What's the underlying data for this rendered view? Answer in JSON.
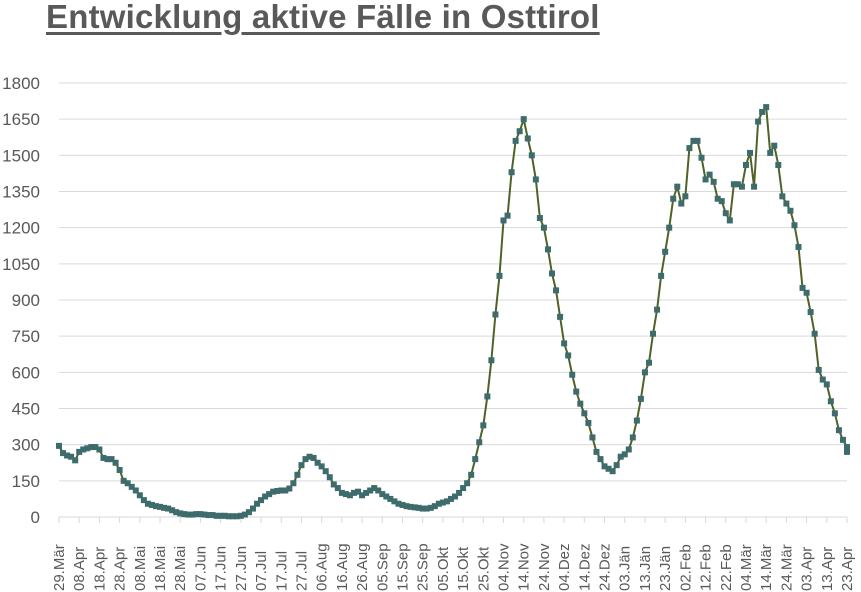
{
  "title": "Entwicklung aktive Fälle in Osttirol",
  "colors": {
    "line": "#4F6228",
    "marker": "#3E6B6B",
    "grid": "#D9D9D9",
    "text": "#595959"
  },
  "chart_data": {
    "type": "line",
    "title": "Entwicklung aktive Fälle in Osttirol",
    "xlabel": "",
    "ylabel": "",
    "ylim": [
      0,
      1800
    ],
    "yticks": [
      0,
      150,
      300,
      450,
      600,
      750,
      900,
      1050,
      1200,
      1350,
      1500,
      1650,
      1800
    ],
    "grid": true,
    "legend": "none",
    "x_tick_labels": [
      "29.Mär",
      "08.Apr",
      "18.Apr",
      "28.Apr",
      "08.Mai",
      "18.Mai",
      "28.Mai",
      "07.Jun",
      "17.Jun",
      "27.Jun",
      "07.Jul",
      "17.Jul",
      "27.Jul",
      "06.Aug",
      "16.Aug",
      "26.Aug",
      "05.Sep",
      "15.Sep",
      "25.Sep",
      "05.Okt",
      "15.Okt",
      "25.Okt",
      "04.Nov",
      "14.Nov",
      "24.Nov",
      "04.Dez",
      "14.Dez",
      "24.Dez",
      "03.Jän",
      "13.Jän",
      "23.Jän",
      "02.Feb",
      "12.Feb",
      "22.Feb",
      "04.Mär",
      "14.Mär",
      "24.Mär",
      "03.Apr",
      "13.Apr",
      "23.Apr"
    ],
    "series": [
      {
        "name": "Aktive Fälle",
        "day_step": 2,
        "values": [
          295,
          265,
          255,
          250,
          235,
          270,
          280,
          285,
          290,
          290,
          280,
          245,
          240,
          240,
          225,
          195,
          150,
          140,
          125,
          110,
          90,
          70,
          55,
          50,
          45,
          42,
          38,
          35,
          28,
          20,
          15,
          12,
          10,
          10,
          12,
          12,
          10,
          8,
          8,
          5,
          5,
          5,
          3,
          3,
          3,
          5,
          10,
          20,
          35,
          55,
          70,
          85,
          95,
          105,
          108,
          110,
          110,
          118,
          140,
          175,
          215,
          240,
          250,
          245,
          225,
          210,
          190,
          165,
          135,
          120,
          100,
          95,
          90,
          100,
          105,
          90,
          100,
          110,
          120,
          110,
          95,
          85,
          75,
          65,
          55,
          50,
          45,
          42,
          40,
          38,
          35,
          35,
          38,
          45,
          55,
          60,
          65,
          75,
          85,
          100,
          120,
          140,
          175,
          240,
          310,
          380,
          500,
          650,
          840,
          1000,
          1230,
          1250,
          1430,
          1560,
          1600,
          1650,
          1570,
          1500,
          1400,
          1240,
          1200,
          1110,
          1010,
          940,
          830,
          720,
          670,
          590,
          520,
          470,
          430,
          390,
          330,
          270,
          240,
          210,
          200,
          190,
          215,
          250,
          260,
          280,
          330,
          400,
          490,
          600,
          640,
          760,
          860,
          1000,
          1100,
          1200,
          1320,
          1370,
          1300,
          1330,
          1530,
          1560,
          1560,
          1490,
          1400,
          1420,
          1390,
          1320,
          1310,
          1260,
          1230,
          1380,
          1380,
          1370,
          1460,
          1510,
          1370,
          1640,
          1680,
          1700,
          1510,
          1540,
          1460,
          1330,
          1300,
          1270,
          1210,
          1120,
          950,
          930,
          850,
          760,
          610,
          570,
          550,
          480,
          430,
          360,
          320,
          290,
          275,
          270
        ]
      }
    ]
  }
}
